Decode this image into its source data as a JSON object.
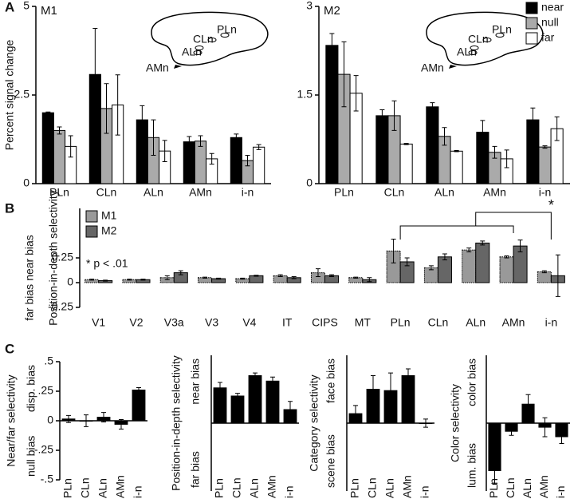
{
  "chart_data": [
    {
      "type": "bar",
      "panel": "A",
      "title": "M1",
      "ylabel": "Percent signal change",
      "categories": [
        "PLn",
        "CLn",
        "ALn",
        "AMn",
        "i-n"
      ],
      "inset_labels": [
        "AMn",
        "ALn",
        "CLn",
        "PLn"
      ],
      "ylim": [
        0,
        5
      ],
      "yticks": [
        0,
        2.5,
        5
      ],
      "series": [
        {
          "color": "#000000",
          "values": [
            2.0,
            3.08,
            1.8,
            1.18,
            1.3
          ],
          "errors": [
            0.02,
            1.3,
            0.4,
            0.15,
            0.1
          ]
        },
        {
          "color": "#aaaaaa",
          "values": [
            1.5,
            2.12,
            1.3,
            1.2,
            0.65
          ],
          "errors": [
            0.1,
            0.7,
            0.5,
            0.15,
            0.15
          ]
        },
        {
          "color": "#ffffff",
          "values": [
            1.05,
            2.22,
            0.92,
            0.7,
            1.03
          ],
          "errors": [
            0.3,
            0.85,
            0.3,
            0.15,
            0.07
          ]
        }
      ]
    },
    {
      "type": "bar",
      "title": "M2",
      "legend": "top-right",
      "categories": [
        "PLn",
        "CLn",
        "ALn",
        "AMn",
        "i-n"
      ],
      "inset_labels": [
        "AMn",
        "ALn",
        "CLn",
        "PLn"
      ],
      "ylim": [
        0,
        3
      ],
      "yticks": [
        0,
        1.5,
        3
      ],
      "series": [
        {
          "name": "near",
          "color": "#000000",
          "values": [
            2.34,
            1.15,
            1.3,
            0.87,
            1.08
          ],
          "errors": [
            0.2,
            0.1,
            0.07,
            0.2,
            0.2
          ]
        },
        {
          "name": "null",
          "color": "#aaaaaa",
          "values": [
            1.85,
            1.15,
            0.8,
            0.53,
            0.62
          ],
          "errors": [
            0.55,
            0.25,
            0.15,
            0.1,
            0.02
          ]
        },
        {
          "name": "far",
          "color": "#ffffff",
          "values": [
            1.53,
            0.67,
            0.55,
            0.42,
            0.93
          ],
          "errors": [
            0.3,
            0.01,
            0.01,
            0.15,
            0.2
          ]
        }
      ]
    },
    {
      "type": "bar",
      "panel": "B",
      "ylabel": "Position-in-depth selectivity",
      "pos_label": "near bias",
      "neg_label": "far bias",
      "legend": "top-left",
      "note": "* p < .01",
      "significance": "*",
      "categories": [
        "V1",
        "V2",
        "V3a",
        "V3",
        "V4",
        "IT",
        "CIPS",
        "MT",
        "PLn",
        "CLn",
        "ALn",
        "AMn",
        "i-n"
      ],
      "ylim": [
        -0.25,
        0.75
      ],
      "yticks": [
        -0.25,
        0,
        0.25
      ],
      "series": [
        {
          "name": "M1",
          "color": "#999999",
          "values": [
            0.03,
            0.03,
            0.05,
            0.05,
            0.04,
            0.07,
            0.1,
            0.05,
            0.32,
            0.15,
            0.33,
            0.26,
            0.11
          ],
          "errors": [
            0.005,
            0.005,
            0.02,
            0.005,
            0.005,
            0.01,
            0.04,
            0.005,
            0.12,
            0.02,
            0.02,
            0.01,
            0.01
          ]
        },
        {
          "name": "M2",
          "color": "#666666",
          "values": [
            0.02,
            0.03,
            0.1,
            0.04,
            0.07,
            0.05,
            0.07,
            0.03,
            0.21,
            0.26,
            0.4,
            0.37,
            0.07
          ],
          "errors": [
            0.005,
            0.005,
            0.02,
            0.005,
            0.005,
            0.01,
            0.01,
            0.02,
            0.04,
            0.03,
            0.02,
            0.06,
            0.21
          ]
        }
      ]
    },
    {
      "type": "bar",
      "panel": "C",
      "ylabel": "Near/far selectivity",
      "pos_label": "disp. bias",
      "neg_label": "null bias",
      "categories": [
        "PLn",
        "CLn",
        "ALn",
        "AMn",
        "i-n"
      ],
      "ylim": [
        -0.5,
        0.5
      ],
      "yticks": [
        {
          "value": 0.5,
          "label": ".5"
        },
        {
          "value": 0.25,
          "label": ".25"
        },
        0,
        {
          "value": -0.25,
          "label": "-.25"
        },
        {
          "value": -0.5,
          "label": "-.5"
        }
      ],
      "series": [
        {
          "color": "#000000",
          "values": [
            0.015,
            0,
            0.03,
            -0.03,
            0.26
          ],
          "errors": [
            0.03,
            0.05,
            0.04,
            0.04,
            0.02
          ]
        }
      ]
    },
    {
      "type": "bar",
      "ylabel": "Position-in-depth selectivity",
      "pos_label": "near bias",
      "neg_label": "far bias",
      "categories": [
        "PLn",
        "CLn",
        "ALn",
        "AMn",
        "i-n"
      ],
      "ylim": [
        -0.5,
        0.5
      ],
      "series": [
        {
          "color": "#000000",
          "values": [
            0.26,
            0.2,
            0.35,
            0.31,
            0.1
          ],
          "errors": [
            0.04,
            0.02,
            0.02,
            0.03,
            0.06
          ]
        }
      ]
    },
    {
      "type": "bar",
      "ylabel": "Category selectivity",
      "pos_label": "face bias",
      "neg_label": "scene bias",
      "categories": [
        "PLn",
        "CLn",
        "ALn",
        "AMn",
        "i-n"
      ],
      "ylim": [
        -0.5,
        0.5
      ],
      "series": [
        {
          "color": "#000000",
          "values": [
            0.07,
            0.25,
            0.24,
            0.35,
            0
          ],
          "errors": [
            0.06,
            0.1,
            0.13,
            0.05,
            0.03
          ]
        }
      ]
    },
    {
      "type": "bar",
      "ylabel": "Color selectivity",
      "pos_label": "color bias",
      "neg_label": "lum. bias",
      "categories": [
        "PLn",
        "CLn",
        "ALn",
        "AMn",
        "i-n"
      ],
      "ylim": [
        -0.5,
        0.5
      ],
      "series": [
        {
          "color": "#000000",
          "values": [
            -0.35,
            -0.06,
            0.14,
            -0.03,
            -0.1
          ],
          "errors": [
            0.1,
            0.03,
            0.07,
            0.07,
            0.05
          ]
        }
      ]
    }
  ]
}
